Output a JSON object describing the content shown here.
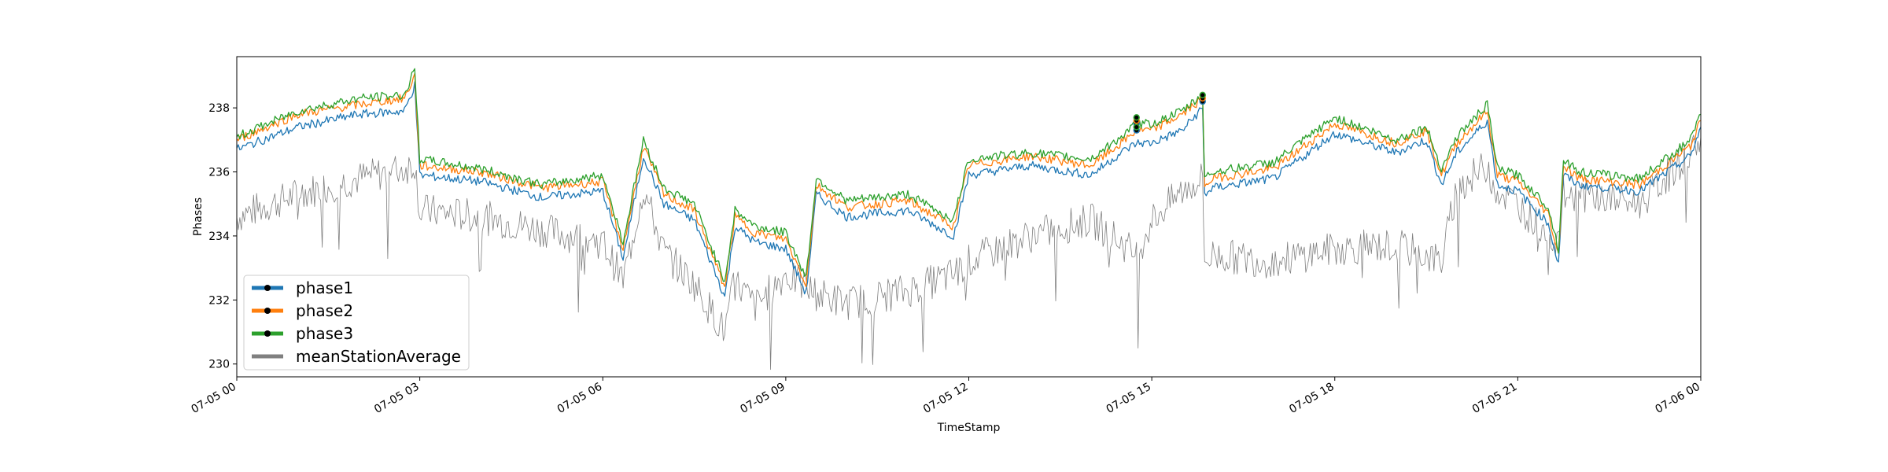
{
  "chart_data": {
    "type": "line",
    "title": "",
    "xlabel": "TimeStamp",
    "ylabel": "Phases",
    "xlim": [
      "07-05 00:00",
      "07-06 00:00"
    ],
    "ylim": [
      229.6,
      239.6
    ],
    "grid": false,
    "legend_position": "lower-left",
    "x_ticks": [
      "07-05 00",
      "07-05 03",
      "07-05 06",
      "07-05 09",
      "07-05 12",
      "07-05 15",
      "07-05 18",
      "07-05 21",
      "07-06 00"
    ],
    "y_ticks": [
      230,
      232,
      234,
      236,
      238
    ],
    "x": [
      "00:00",
      "01:00",
      "02:00",
      "02:45",
      "02:55",
      "03:00",
      "04:00",
      "05:00",
      "06:00",
      "06:20",
      "06:40",
      "07:00",
      "07:30",
      "08:00",
      "08:10",
      "08:30",
      "09:00",
      "09:20",
      "09:30",
      "10:00",
      "11:00",
      "11:45",
      "12:00",
      "13:00",
      "14:00",
      "14:30",
      "14:45",
      "15:00",
      "15:30",
      "15:50",
      "15:52",
      "16:00",
      "17:00",
      "18:00",
      "19:00",
      "19:30",
      "19:45",
      "20:00",
      "20:30",
      "20:40",
      "21:00",
      "21:30",
      "21:40",
      "21:45",
      "22:00",
      "23:00",
      "23:50",
      "24:00"
    ],
    "series": [
      {
        "name": "phase1",
        "color": "#1f77b4",
        "values": [
          236.7,
          237.4,
          237.8,
          237.9,
          238.7,
          235.9,
          235.7,
          235.2,
          235.4,
          233.3,
          236.5,
          235.0,
          234.5,
          232.1,
          234.3,
          233.8,
          233.6,
          232.2,
          235.3,
          234.6,
          234.8,
          234.0,
          235.9,
          236.2,
          235.9,
          236.6,
          236.9,
          236.9,
          237.3,
          238.0,
          235.3,
          235.5,
          235.8,
          237.2,
          236.6,
          237.0,
          235.6,
          236.6,
          237.6,
          235.6,
          235.4,
          234.4,
          233.1,
          235.9,
          235.6,
          235.4,
          236.5,
          237.4
        ]
      },
      {
        "name": "phase2",
        "color": "#ff7f0e",
        "values": [
          237.0,
          237.8,
          238.1,
          238.3,
          239.0,
          236.2,
          236.0,
          235.5,
          235.7,
          233.6,
          236.8,
          235.3,
          234.8,
          232.4,
          234.6,
          234.1,
          233.9,
          232.5,
          235.6,
          234.9,
          235.1,
          234.3,
          236.2,
          236.5,
          236.2,
          236.9,
          237.3,
          237.3,
          237.8,
          238.3,
          235.6,
          235.8,
          236.1,
          237.5,
          236.9,
          237.3,
          235.9,
          236.9,
          237.9,
          235.9,
          235.7,
          234.7,
          233.4,
          236.2,
          235.8,
          235.6,
          236.8,
          237.6
        ]
      },
      {
        "name": "phase3",
        "color": "#2ca02c",
        "values": [
          237.1,
          237.9,
          238.3,
          238.4,
          239.2,
          236.4,
          236.1,
          235.6,
          235.9,
          233.8,
          237.0,
          235.5,
          235.0,
          232.6,
          234.8,
          234.3,
          234.1,
          232.7,
          235.8,
          235.1,
          235.3,
          234.5,
          236.4,
          236.6,
          236.4,
          237.1,
          237.5,
          237.5,
          237.9,
          238.4,
          235.8,
          236.0,
          236.3,
          237.7,
          237.0,
          237.4,
          236.1,
          237.1,
          238.1,
          236.1,
          235.9,
          234.9,
          233.6,
          236.4,
          236.0,
          235.8,
          237.0,
          237.8
        ]
      },
      {
        "name": "meanStationAverage",
        "color": "#808080",
        "values": [
          234.6,
          235.3,
          235.8,
          236.1,
          236.3,
          234.8,
          234.6,
          234.2,
          233.8,
          232.6,
          235.5,
          233.5,
          232.5,
          231.0,
          232.6,
          231.8,
          232.8,
          232.4,
          232.2,
          231.9,
          232.3,
          232.8,
          233.2,
          234.0,
          234.5,
          233.8,
          233.4,
          234.5,
          235.4,
          235.8,
          233.2,
          233.4,
          233.2,
          233.6,
          233.7,
          233.4,
          233.2,
          235.5,
          236.2,
          235.4,
          235.0,
          234.0,
          233.9,
          235.3,
          235.3,
          235.0,
          236.6,
          237.1
        ]
      }
    ],
    "markers": [
      {
        "series": "phase1",
        "x": [
          "14:45",
          "14:45",
          "15:50"
        ],
        "values": [
          237.3,
          237.5,
          238.2
        ]
      },
      {
        "series": "phase2",
        "x": [
          "14:45",
          "15:50"
        ],
        "values": [
          237.6,
          238.3
        ]
      },
      {
        "series": "phase3",
        "x": [
          "14:45",
          "14:45",
          "15:50"
        ],
        "values": [
          237.4,
          237.7,
          238.4
        ]
      }
    ],
    "legend": [
      "phase1",
      "phase2",
      "phase3",
      "meanStationAverage"
    ]
  }
}
